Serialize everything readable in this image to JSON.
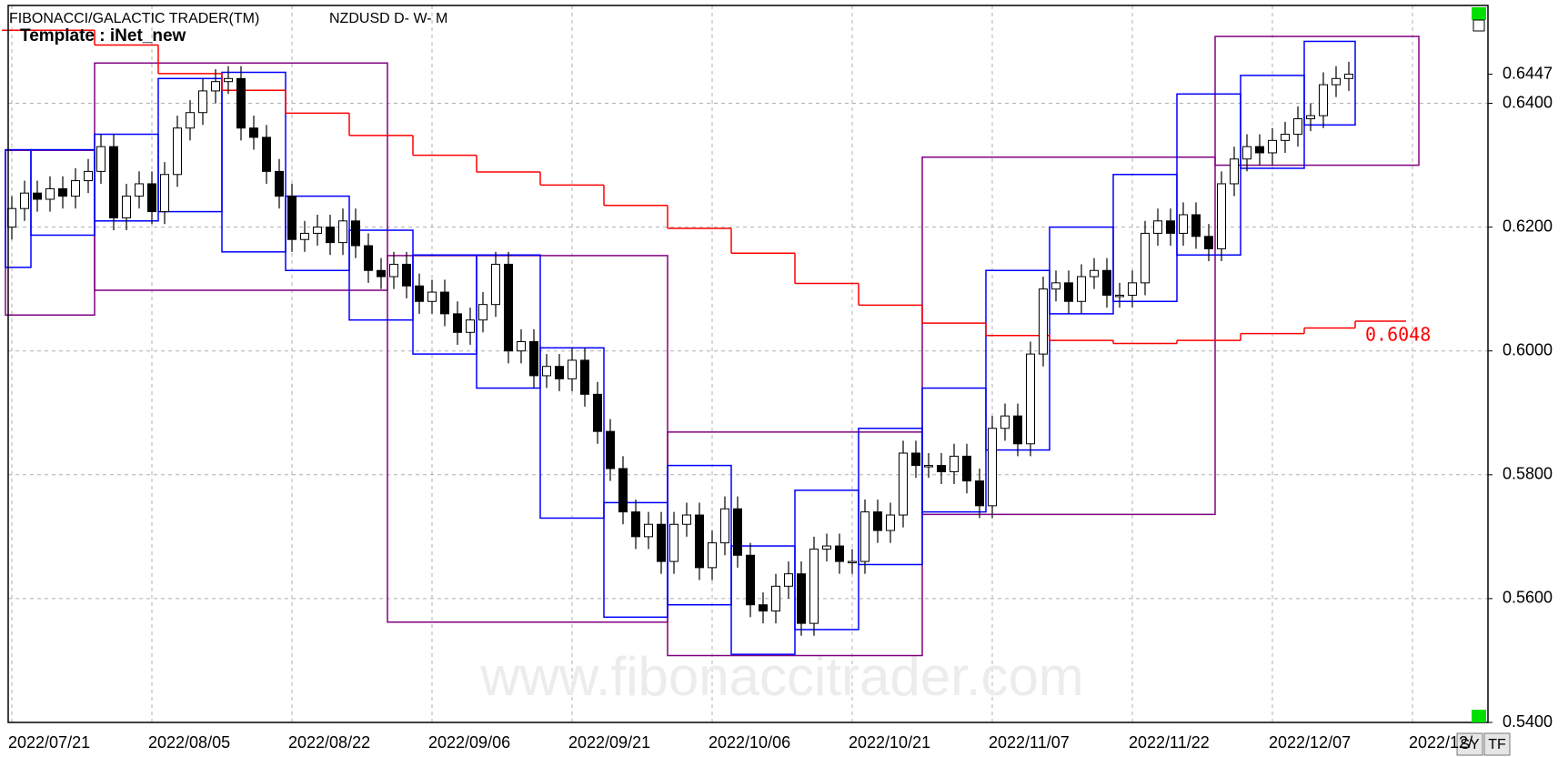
{
  "chart_data": {
    "type": "candlestick",
    "title": "FIBONACCI/GALACTIC TRADER(TM)",
    "symbol": "NZDUSD D- W- M",
    "template": "Template : iNet_new",
    "watermark": "www.fibonaccitrader.com",
    "buttons": [
      "SY",
      "TF"
    ],
    "categories": [
      "2022/07/21",
      null,
      null,
      null,
      null,
      null,
      null,
      null,
      null,
      null,
      null,
      "2022/08/05",
      null,
      null,
      null,
      null,
      null,
      null,
      null,
      null,
      null,
      null,
      "2022/08/22",
      null,
      null,
      null,
      null,
      null,
      null,
      null,
      null,
      null,
      null,
      "2022/09/06",
      null,
      null,
      null,
      null,
      null,
      null,
      null,
      null,
      null,
      null,
      "2022/09/21",
      null,
      null,
      null,
      null,
      null,
      null,
      null,
      null,
      null,
      null,
      "2022/10/06",
      null,
      null,
      null,
      null,
      null,
      null,
      null,
      null,
      null,
      null,
      "2022/10/21",
      null,
      null,
      null,
      null,
      null,
      null,
      null,
      null,
      null,
      null,
      "2022/11/07",
      null,
      null,
      null,
      null,
      null,
      null,
      null,
      null,
      null,
      null,
      "2022/11/22",
      null,
      null,
      null,
      null,
      null,
      null,
      null,
      null,
      null,
      null,
      "2022/12/07",
      null,
      null,
      null,
      null,
      null,
      null,
      null,
      null,
      null,
      null,
      "2022/12/"
    ],
    "open": [
      0.62,
      0.623,
      0.6255,
      0.6245,
      0.6262,
      0.625,
      0.6275,
      0.629,
      0.633,
      0.6215,
      0.625,
      0.627,
      0.6225,
      0.6285,
      0.636,
      0.6385,
      0.642,
      0.6435,
      0.644,
      0.636,
      0.6345,
      0.629,
      0.625,
      0.618,
      0.619,
      0.62,
      0.6175,
      0.621,
      0.617,
      0.613,
      0.612,
      0.614,
      0.6105,
      0.608,
      0.6095,
      0.606,
      0.603,
      0.605,
      0.6075,
      0.614,
      0.6,
      0.6015,
      0.596,
      0.5975,
      0.5955,
      0.5985,
      0.593,
      0.587,
      0.581,
      0.574,
      0.57,
      0.572,
      0.566,
      0.572,
      0.5735,
      0.565,
      0.569,
      0.5745,
      0.567,
      0.559,
      0.558,
      0.562,
      0.564,
      0.556,
      0.568,
      0.5685,
      0.566,
      0.566,
      0.574,
      0.571,
      0.5735,
      0.5835,
      0.5815,
      0.5815,
      0.5805,
      0.583,
      0.579,
      0.575,
      0.5875,
      0.5895,
      0.585,
      0.5995,
      0.61,
      0.611,
      0.608,
      0.612,
      0.613,
      0.609,
      0.609,
      0.611,
      0.619,
      0.621,
      0.619,
      0.622,
      0.6185,
      0.6165,
      0.627,
      0.631,
      0.633,
      0.632,
      0.634,
      0.635,
      0.6375,
      0.638,
      0.643,
      0.644,
      null,
      null,
      null,
      null,
      null
    ],
    "high": [
      0.625,
      0.6275,
      0.6275,
      0.6282,
      0.6282,
      0.6295,
      0.631,
      0.635,
      0.635,
      0.627,
      0.629,
      0.629,
      0.6305,
      0.638,
      0.6405,
      0.644,
      0.6455,
      0.646,
      0.646,
      0.638,
      0.6365,
      0.631,
      0.627,
      0.621,
      0.622,
      0.622,
      0.623,
      0.623,
      0.619,
      0.615,
      0.616,
      0.616,
      0.6125,
      0.6115,
      0.6115,
      0.608,
      0.607,
      0.6095,
      0.616,
      0.616,
      0.6035,
      0.6035,
      0.5995,
      0.5995,
      0.6005,
      0.6005,
      0.595,
      0.589,
      0.583,
      0.576,
      0.574,
      0.574,
      0.574,
      0.5755,
      0.5755,
      0.571,
      0.5765,
      0.5765,
      0.569,
      0.561,
      0.564,
      0.566,
      0.566,
      0.57,
      0.5705,
      0.5705,
      0.568,
      0.576,
      0.576,
      0.5755,
      0.5855,
      0.5855,
      0.5835,
      0.5835,
      0.585,
      0.585,
      0.581,
      0.5895,
      0.5915,
      0.5915,
      0.6015,
      0.612,
      0.613,
      0.613,
      0.614,
      0.615,
      0.615,
      0.611,
      0.613,
      0.621,
      0.623,
      0.623,
      0.624,
      0.624,
      0.6205,
      0.629,
      0.633,
      0.635,
      0.635,
      0.636,
      0.637,
      0.6395,
      0.64,
      0.645,
      0.646,
      0.6467,
      null,
      null,
      null,
      null,
      null
    ],
    "low": [
      0.618,
      0.621,
      0.6225,
      0.6225,
      0.623,
      0.623,
      0.6255,
      0.627,
      0.6195,
      0.6195,
      0.623,
      0.6205,
      0.6205,
      0.6265,
      0.634,
      0.6365,
      0.64,
      0.6415,
      0.634,
      0.6325,
      0.627,
      0.623,
      0.616,
      0.616,
      0.617,
      0.6155,
      0.6155,
      0.615,
      0.611,
      0.61,
      0.61,
      0.6085,
      0.606,
      0.606,
      0.604,
      0.601,
      0.601,
      0.603,
      0.6055,
      0.598,
      0.598,
      0.594,
      0.594,
      0.5935,
      0.5935,
      0.591,
      0.585,
      0.579,
      0.572,
      0.568,
      0.568,
      0.564,
      0.564,
      0.57,
      0.563,
      0.563,
      0.567,
      0.565,
      0.557,
      0.556,
      0.556,
      0.56,
      0.554,
      0.554,
      0.566,
      0.564,
      0.564,
      0.564,
      0.569,
      0.569,
      0.5715,
      0.5795,
      0.5795,
      0.5785,
      0.5785,
      0.577,
      0.573,
      0.573,
      0.5855,
      0.583,
      0.583,
      0.5975,
      0.608,
      0.606,
      0.606,
      0.61,
      0.607,
      0.607,
      0.607,
      0.609,
      0.617,
      0.617,
      0.617,
      0.6165,
      0.6145,
      0.6145,
      0.625,
      0.629,
      0.63,
      0.63,
      0.632,
      0.633,
      0.6355,
      0.636,
      0.641,
      0.642,
      null,
      null,
      null,
      null,
      null
    ],
    "close": [
      0.623,
      0.6255,
      0.6245,
      0.6262,
      0.625,
      0.6275,
      0.629,
      0.633,
      0.6215,
      0.625,
      0.627,
      0.6225,
      0.6285,
      0.636,
      0.6385,
      0.642,
      0.6435,
      0.644,
      0.636,
      0.6345,
      0.629,
      0.625,
      0.618,
      0.619,
      0.62,
      0.6175,
      0.621,
      0.617,
      0.613,
      0.612,
      0.614,
      0.6105,
      0.608,
      0.6095,
      0.606,
      0.603,
      0.605,
      0.6075,
      0.614,
      0.6,
      0.6015,
      0.596,
      0.5975,
      0.5955,
      0.5985,
      0.593,
      0.587,
      0.581,
      0.574,
      0.57,
      0.572,
      0.566,
      0.572,
      0.5735,
      0.565,
      0.569,
      0.5745,
      0.567,
      0.559,
      0.558,
      0.562,
      0.564,
      0.556,
      0.568,
      0.5685,
      0.566,
      0.566,
      0.574,
      0.571,
      0.5735,
      0.5835,
      0.5815,
      0.5815,
      0.5805,
      0.583,
      0.579,
      0.575,
      0.5875,
      0.5895,
      0.585,
      0.5995,
      0.61,
      0.611,
      0.608,
      0.612,
      0.613,
      0.609,
      0.609,
      0.611,
      0.619,
      0.621,
      0.619,
      0.622,
      0.6185,
      0.6165,
      0.627,
      0.631,
      0.633,
      0.632,
      0.634,
      0.635,
      0.6375,
      0.638,
      0.643,
      0.644,
      0.6447,
      null,
      null,
      null,
      null,
      null
    ],
    "ylim": [
      0.54,
      0.6558
    ],
    "yticks": [
      {
        "value": 0.54,
        "label": "0.5400"
      },
      {
        "value": 0.56,
        "label": "0.5600"
      },
      {
        "value": 0.58,
        "label": "0.5800"
      },
      {
        "value": 0.6,
        "label": "0.6000"
      },
      {
        "value": 0.62,
        "label": "0.6200"
      },
      {
        "value": 0.64,
        "label": "0.6400"
      }
    ],
    "last_price": {
      "value": 0.6447,
      "label": "0.6447"
    },
    "grid": true,
    "weekly_boxes": {
      "color": "#0000ff",
      "start": [
        0,
        2,
        7,
        12,
        17,
        22,
        27,
        32,
        37,
        42,
        47,
        52,
        57,
        62,
        67,
        72,
        77,
        82,
        87,
        92,
        97,
        102
      ],
      "end": [
        2,
        7,
        12,
        17,
        22,
        27,
        32,
        37,
        42,
        47,
        52,
        57,
        62,
        67,
        72,
        77,
        82,
        87,
        92,
        97,
        102,
        106
      ],
      "top": [
        0.6325,
        0.6325,
        0.635,
        0.644,
        0.645,
        0.625,
        0.6195,
        0.6155,
        0.6155,
        0.6005,
        0.5755,
        0.5815,
        0.5685,
        0.5775,
        0.5875,
        0.594,
        0.613,
        0.62,
        0.6285,
        0.6415,
        0.6445,
        0.65
      ],
      "bottom": [
        0.6135,
        0.6187,
        0.621,
        0.6225,
        0.616,
        0.613,
        0.605,
        0.5995,
        0.594,
        0.573,
        0.557,
        0.559,
        0.551,
        0.555,
        0.5655,
        0.574,
        0.584,
        0.606,
        0.608,
        0.6155,
        0.6295,
        0.6365
      ]
    },
    "monthly_boxes": {
      "color": "#800080",
      "start": [
        0,
        7,
        30,
        52,
        72,
        95
      ],
      "end": [
        7,
        30,
        52,
        72,
        95,
        111
      ],
      "top": [
        0.6324,
        0.6465,
        0.6154,
        0.5869,
        0.6313,
        0.6508
      ],
      "bottom": [
        0.6058,
        0.6098,
        0.5562,
        0.5508,
        0.5736,
        0.63
      ]
    },
    "step_line": {
      "color": "#ff0000",
      "x": [
        0,
        7,
        12,
        17,
        22,
        27,
        32,
        37,
        42,
        47,
        52,
        57,
        62,
        67,
        72,
        77,
        82,
        87,
        92,
        97,
        102,
        106
      ],
      "values": [
        0.6518,
        0.6494,
        0.6448,
        0.6421,
        0.6384,
        0.6348,
        0.6316,
        0.6289,
        0.6268,
        0.6235,
        0.6198,
        0.6158,
        0.6109,
        0.6074,
        0.6045,
        0.6025,
        0.6017,
        0.6012,
        0.6017,
        0.6028,
        0.6037,
        0.6048
      ],
      "end_label": {
        "value": 0.6048,
        "label": "0.6048"
      }
    }
  }
}
